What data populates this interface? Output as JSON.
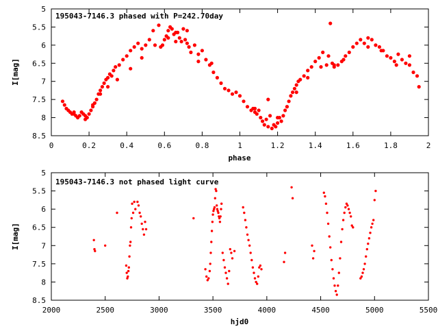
{
  "chart_data": [
    {
      "type": "scatter",
      "title": "195043-7146.3 phased with P=242.70day",
      "xlabel": "phase",
      "ylabel": "I[mag]",
      "xlim": [
        0,
        2
      ],
      "ylim": [
        8.5,
        5
      ],
      "y_inverted": true,
      "xticks": [
        "0",
        "0.2",
        "0.4",
        "0.6",
        "0.8",
        "1",
        "1.2",
        "1.4",
        "1.6",
        "1.8",
        "2"
      ],
      "yticks": [
        "5",
        "5.5",
        "6",
        "6.5",
        "7",
        "7.5",
        "8",
        "8.5"
      ],
      "grid": false,
      "marker": "filled-circle",
      "color": "#ff0000",
      "series": [
        {
          "x": [
            0.06,
            0.07,
            0.08,
            0.09,
            0.1,
            0.11,
            0.12,
            0.13,
            0.14,
            0.15,
            0.16,
            0.17,
            0.18,
            0.19,
            0.2,
            0.21,
            0.22,
            0.23,
            0.24,
            0.25,
            0.26,
            0.27,
            0.28,
            0.29,
            0.3,
            0.31,
            0.32,
            0.33,
            0.34,
            0.36,
            0.38,
            0.4,
            0.42,
            0.44,
            0.46,
            0.48,
            0.5,
            0.52,
            0.54,
            0.57,
            0.58,
            0.59,
            0.6,
            0.61,
            0.62,
            0.63,
            0.64,
            0.65,
            0.66,
            0.67,
            0.68,
            0.69,
            0.7,
            0.71,
            0.72,
            0.73,
            0.74,
            0.76,
            0.78,
            0.8,
            0.82,
            0.84,
            0.86,
            0.88,
            0.9,
            0.92,
            0.94,
            0.96,
            0.98,
            1.0,
            1.02,
            1.04,
            1.06,
            1.07,
            1.08,
            1.09,
            1.1,
            1.11,
            1.12,
            1.13,
            1.14,
            1.15,
            1.16,
            1.17,
            1.18,
            1.19,
            1.2,
            1.21,
            1.22,
            1.23,
            1.24,
            1.25,
            1.26,
            1.27,
            1.28,
            1.29,
            1.3,
            1.31,
            1.32,
            1.34,
            1.36,
            1.38,
            1.4,
            1.42,
            1.44,
            1.46,
            1.47,
            1.48,
            1.49,
            1.5,
            1.52,
            1.54,
            1.56,
            1.58,
            1.6,
            1.62,
            1.64,
            1.66,
            1.68,
            1.7,
            1.72,
            1.74,
            1.76,
            1.78,
            1.8,
            1.82,
            1.84,
            1.86,
            1.88,
            1.9,
            1.92,
            1.94,
            1.95,
            0.12,
            0.18,
            0.22,
            0.26,
            0.3,
            0.35,
            0.42,
            0.48,
            0.55,
            0.62,
            0.66,
            0.72,
            0.78,
            0.85,
            1.08,
            1.15,
            1.2,
            1.25,
            1.3,
            1.36,
            1.43,
            1.5,
            1.55,
            1.68,
            1.75,
            1.83,
            1.9
          ],
          "y": [
            7.55,
            7.65,
            7.75,
            7.8,
            7.85,
            7.9,
            7.85,
            7.95,
            8.0,
            7.95,
            7.85,
            7.9,
            7.95,
            8.0,
            7.9,
            7.8,
            7.7,
            7.6,
            7.5,
            7.35,
            7.25,
            7.15,
            7.05,
            6.95,
            6.9,
            6.8,
            6.85,
            6.7,
            6.6,
            6.55,
            6.4,
            6.3,
            6.15,
            6.05,
            5.95,
            6.1,
            6.0,
            5.85,
            5.6,
            5.45,
            6.05,
            6.0,
            5.85,
            5.75,
            5.6,
            5.5,
            5.55,
            5.7,
            5.9,
            5.65,
            5.8,
            5.9,
            5.55,
            5.85,
            5.95,
            6.05,
            6.2,
            6.0,
            6.25,
            6.15,
            6.4,
            6.55,
            6.75,
            6.9,
            7.05,
            7.2,
            7.25,
            7.35,
            7.3,
            7.4,
            7.55,
            7.7,
            7.8,
            7.75,
            7.85,
            7.9,
            7.8,
            8.0,
            8.1,
            8.2,
            8.05,
            8.25,
            7.95,
            8.3,
            8.2,
            8.25,
            8.15,
            8.0,
            8.1,
            7.95,
            7.8,
            7.7,
            7.55,
            7.4,
            7.3,
            7.2,
            7.1,
            7.0,
            6.95,
            6.85,
            6.7,
            6.6,
            6.45,
            6.35,
            6.2,
            6.55,
            6.3,
            5.4,
            6.5,
            6.6,
            6.55,
            6.45,
            6.3,
            6.2,
            6.05,
            5.95,
            5.85,
            5.95,
            5.8,
            5.85,
            6.0,
            6.05,
            6.15,
            6.3,
            6.35,
            6.45,
            6.25,
            6.4,
            6.5,
            6.55,
            6.75,
            6.85,
            7.15,
            7.9,
            8.05,
            7.65,
            7.35,
            7.15,
            6.95,
            6.65,
            6.35,
            6.0,
            5.8,
            5.65,
            5.6,
            6.45,
            6.5,
            7.75,
            7.5,
            8.0,
            7.7,
            7.3,
            6.9,
            6.6,
            6.55,
            6.4,
            6.05,
            6.15,
            6.55,
            6.3
          ]
        }
      ]
    },
    {
      "type": "scatter",
      "title": "195043-7146.3 not phased light curve",
      "xlabel": "hjd0",
      "ylabel": "I[mag]",
      "xlim": [
        2000,
        5500
      ],
      "ylim": [
        8.5,
        5
      ],
      "y_inverted": true,
      "xticks": [
        "2000",
        "2500",
        "3000",
        "3500",
        "4000",
        "4500",
        "5000",
        "5500"
      ],
      "yticks": [
        "5",
        "5.5",
        "6",
        "6.5",
        "7",
        "7.5",
        "8",
        "8.5"
      ],
      "grid": false,
      "marker": "filled-circle",
      "color": "#ff0000",
      "series": [
        {
          "x": [
            2395,
            2400,
            2405,
            2500,
            2610,
            2695,
            2700,
            2705,
            2710,
            2715,
            2720,
            2725,
            2730,
            2735,
            2740,
            2745,
            2750,
            2760,
            2770,
            2780,
            2800,
            2810,
            2820,
            2830,
            2840,
            2850,
            2860,
            2870,
            2880,
            3320,
            3430,
            3440,
            3450,
            3460,
            3470,
            3475,
            3480,
            3485,
            3490,
            3495,
            3500,
            3505,
            3510,
            3515,
            3520,
            3525,
            3530,
            3535,
            3540,
            3545,
            3550,
            3555,
            3560,
            3565,
            3570,
            3575,
            3580,
            3590,
            3600,
            3610,
            3620,
            3630,
            3640,
            3650,
            3660,
            3670,
            3680,
            3700,
            3780,
            3790,
            3800,
            3810,
            3820,
            3830,
            3840,
            3850,
            3860,
            3870,
            3880,
            3890,
            3900,
            3910,
            3920,
            3930,
            3940,
            3950,
            4160,
            4170,
            4230,
            4240,
            4420,
            4430,
            4440,
            4530,
            4540,
            4550,
            4560,
            4570,
            4580,
            4590,
            4600,
            4610,
            4620,
            4630,
            4640,
            4650,
            4660,
            4670,
            4680,
            4690,
            4700,
            4710,
            4720,
            4730,
            4740,
            4750,
            4760,
            4770,
            4780,
            4790,
            4800,
            4870,
            4880,
            4890,
            4900,
            4910,
            4920,
            4930,
            4940,
            4950,
            4960,
            4970,
            4980,
            4990,
            5000,
            5010
          ],
          "y": [
            6.85,
            7.1,
            7.15,
            7.0,
            6.1,
            7.55,
            7.75,
            7.9,
            7.85,
            7.7,
            7.6,
            7.3,
            7.0,
            6.9,
            6.5,
            6.25,
            5.85,
            6.1,
            5.8,
            6.0,
            5.8,
            5.9,
            6.1,
            6.2,
            6.4,
            6.55,
            6.7,
            6.35,
            6.55,
            6.25,
            7.65,
            7.85,
            7.95,
            7.9,
            7.7,
            7.5,
            7.2,
            6.9,
            6.6,
            6.35,
            6.15,
            6.05,
            6.0,
            5.95,
            5.7,
            5.45,
            5.5,
            5.9,
            6.0,
            6.05,
            6.1,
            6.2,
            6.25,
            6.35,
            6.2,
            6.0,
            5.85,
            7.2,
            7.4,
            7.6,
            7.75,
            7.9,
            8.05,
            7.7,
            7.1,
            7.2,
            7.35,
            7.15,
            5.95,
            6.1,
            6.3,
            6.5,
            6.7,
            6.85,
            7.0,
            7.2,
            7.4,
            7.6,
            7.75,
            7.9,
            8.0,
            8.05,
            7.85,
            7.6,
            7.55,
            7.65,
            7.45,
            7.2,
            5.4,
            5.7,
            7.0,
            7.35,
            7.15,
            5.55,
            5.65,
            5.85,
            6.1,
            6.4,
            6.75,
            7.05,
            7.4,
            7.65,
            7.9,
            8.1,
            8.25,
            8.35,
            8.1,
            7.75,
            7.35,
            6.9,
            6.55,
            6.3,
            6.1,
            5.95,
            5.85,
            5.9,
            6.0,
            6.1,
            6.2,
            6.45,
            6.5,
            7.9,
            7.85,
            7.75,
            7.65,
            7.5,
            7.3,
            7.1,
            6.95,
            6.8,
            6.65,
            6.5,
            6.4,
            6.3,
            5.75,
            5.5
          ]
        }
      ]
    }
  ]
}
